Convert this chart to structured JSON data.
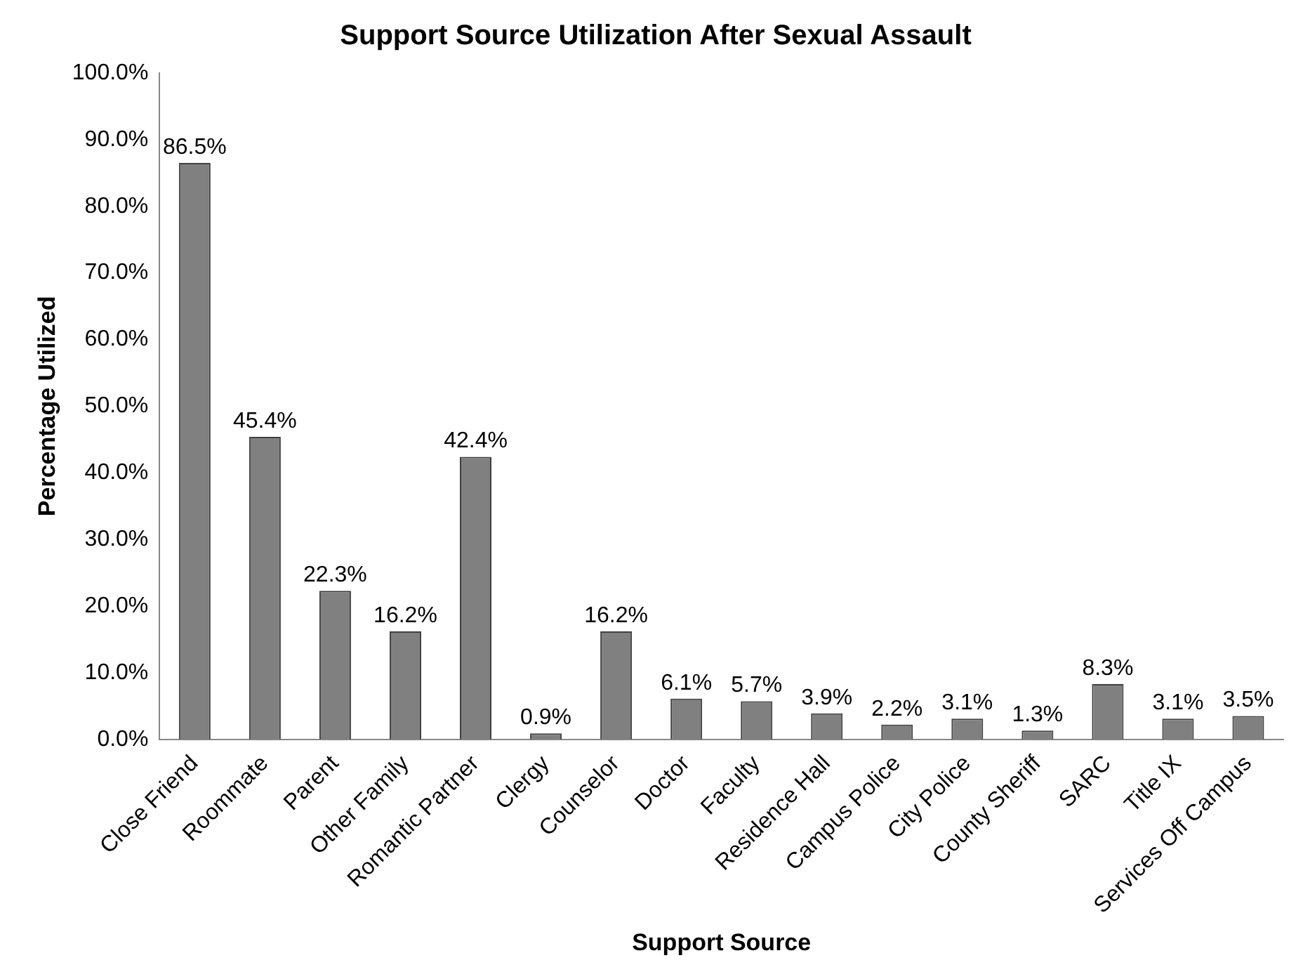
{
  "chart_data": {
    "type": "bar",
    "title": "Support Source Utilization After Sexual Assault",
    "xlabel": "Support Source",
    "ylabel": "Percentage Utilized",
    "categories": [
      "Close Friend",
      "Roommate",
      "Parent",
      "Other Family",
      "Romantic Partner",
      "Clergy",
      "Counselor",
      "Doctor",
      "Faculty",
      "Residence Hall",
      "Campus Police",
      "City Police",
      "County Sheriff",
      "SARC",
      "Title IX",
      "Services Off Campus"
    ],
    "values": [
      86.5,
      45.4,
      22.3,
      16.2,
      42.4,
      0.9,
      16.2,
      6.1,
      5.7,
      3.9,
      2.2,
      3.1,
      1.3,
      8.3,
      3.1,
      3.5
    ],
    "value_labels": [
      "86.5%",
      "45.4%",
      "22.3%",
      "16.2%",
      "42.4%",
      "0.9%",
      "16.2%",
      "6.1%",
      "5.7%",
      "3.9%",
      "2.2%",
      "3.1%",
      "1.3%",
      "8.3%",
      "3.1%",
      "3.5%"
    ],
    "color": "#808080",
    "ylim": [
      0,
      100
    ],
    "yticks": [
      {
        "value": 0,
        "label": "0.0%"
      },
      {
        "value": 10,
        "label": "10.0%"
      },
      {
        "value": 20,
        "label": "20.0%"
      },
      {
        "value": 30,
        "label": "30.0%"
      },
      {
        "value": 40,
        "label": "40.0%"
      },
      {
        "value": 50,
        "label": "50.0%"
      },
      {
        "value": 60,
        "label": "60.0%"
      },
      {
        "value": 70,
        "label": "70.0%"
      },
      {
        "value": 80,
        "label": "80.0%"
      },
      {
        "value": 90,
        "label": "90.0%"
      },
      {
        "value": 100,
        "label": "100.0%"
      }
    ],
    "grid": false,
    "legend": false
  }
}
